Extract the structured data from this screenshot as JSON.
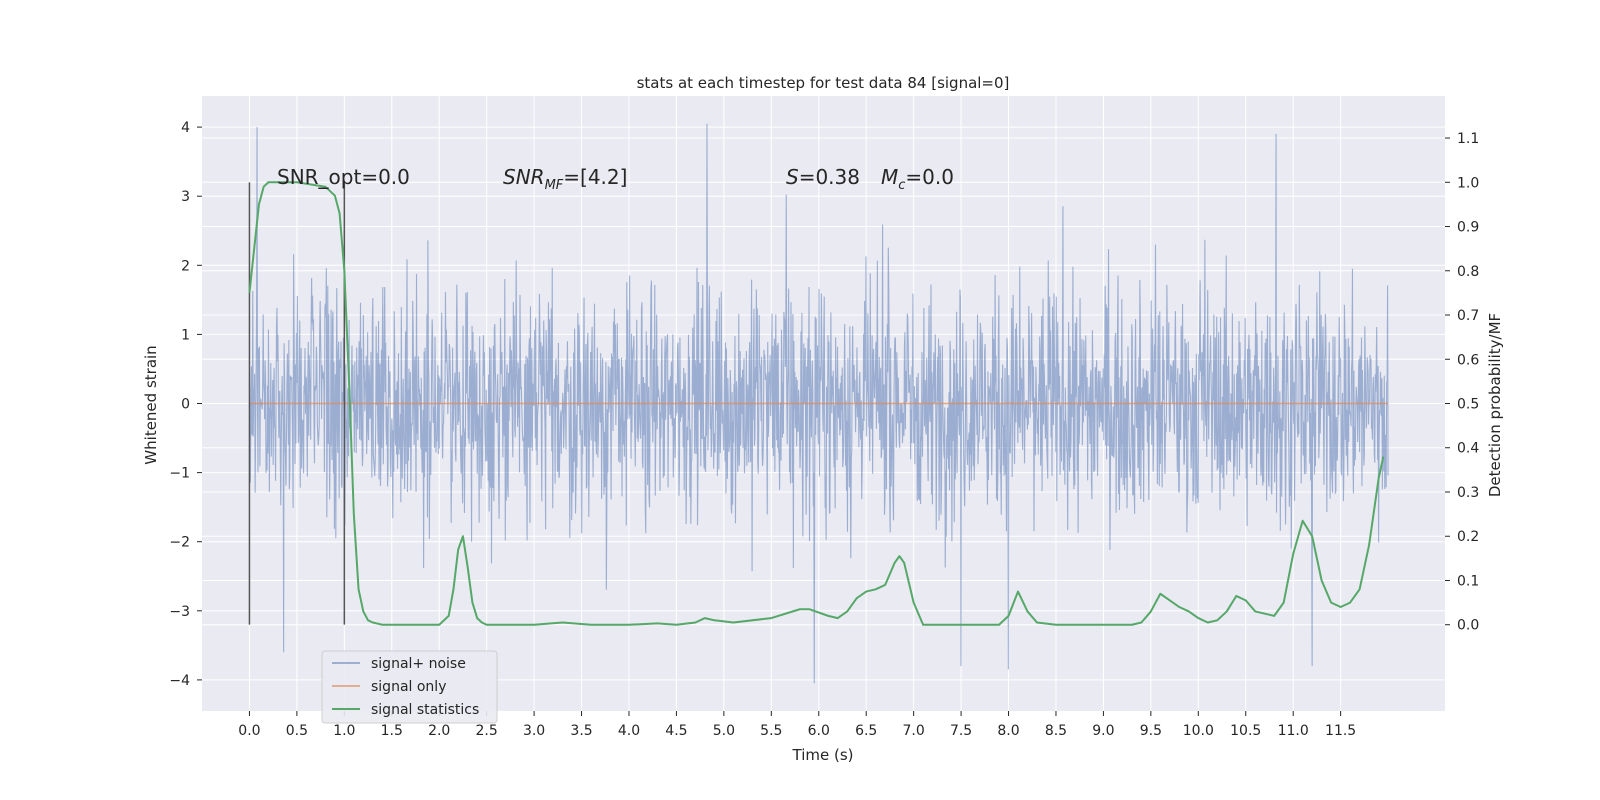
{
  "chart_data": {
    "type": "line",
    "title": "stats at each timestep for test data 84 [signal=0]",
    "xlabel": "Time (s)",
    "ylabel_left": "Whitened strain",
    "ylabel_right": "Detection probability/MF",
    "xlim": [
      -0.5,
      12.6
    ],
    "ylim_left": [
      -4.45,
      4.45
    ],
    "ylim_right": [
      -0.195,
      1.195
    ],
    "x_ticks": [
      "0.0",
      "0.5",
      "1.0",
      "1.5",
      "2.0",
      "2.5",
      "3.0",
      "3.5",
      "4.0",
      "4.5",
      "5.0",
      "5.5",
      "6.0",
      "6.5",
      "7.0",
      "7.5",
      "8.0",
      "8.5",
      "9.0",
      "9.5",
      "10.0",
      "10.5",
      "11.0",
      "11.5"
    ],
    "y_ticks_left": [
      "−4",
      "−3",
      "−2",
      "−1",
      "0",
      "1",
      "2",
      "3",
      "4"
    ],
    "y_ticks_right": [
      "0.0",
      "0.1",
      "0.2",
      "0.3",
      "0.4",
      "0.5",
      "0.6",
      "0.7",
      "0.8",
      "0.9",
      "1.0",
      "1.1"
    ],
    "grid": true,
    "background": "#eaeaf2",
    "annotations": {
      "snr_opt": "SNR_opt=0.0",
      "snr_mf_base": "SNR",
      "snr_mf_sub": "MF",
      "snr_mf_value": "=[4.2]",
      "s_symbol": "S",
      "s_value": "=0.38",
      "mc_symbol": "M",
      "mc_sub": "c",
      "mc_value": "=0.0"
    },
    "window_markers_x": [
      0.0,
      1.0
    ],
    "legend": {
      "placement": "lower left",
      "entries": [
        "signal+ noise",
        "signal only",
        "signal statistics"
      ]
    },
    "series": [
      {
        "name": "signal+ noise",
        "color": "#4c72b0",
        "opacity": 0.5,
        "axis": "left",
        "x_range": [
          0.0,
          12.0
        ],
        "envelope_typical": [
          -2.0,
          2.0
        ],
        "notable_peaks": [
          {
            "x": 0.08,
            "y": 4.0
          },
          {
            "x": 4.82,
            "y": 4.05
          },
          {
            "x": 10.82,
            "y": 3.9
          },
          {
            "x": 5.95,
            "y": -4.05
          },
          {
            "x": 0.36,
            "y": -3.6
          },
          {
            "x": 11.2,
            "y": -3.8
          },
          {
            "x": 8.0,
            "y": -3.85
          },
          {
            "x": 7.5,
            "y": -3.8
          }
        ]
      },
      {
        "name": "signal only",
        "color": "#dd8452",
        "axis": "left",
        "x": [
          0.0,
          12.0
        ],
        "y": [
          0.0,
          0.0
        ]
      },
      {
        "name": "signal statistics",
        "color": "#55a868",
        "axis": "right",
        "x": [
          0.0,
          0.05,
          0.1,
          0.15,
          0.2,
          0.5,
          0.8,
          0.9,
          0.95,
          1.0,
          1.05,
          1.1,
          1.15,
          1.2,
          1.25,
          1.3,
          1.4,
          1.6,
          1.8,
          2.0,
          2.1,
          2.15,
          2.2,
          2.25,
          2.3,
          2.35,
          2.4,
          2.45,
          2.5,
          2.6,
          2.8,
          3.0,
          3.3,
          3.6,
          4.0,
          4.3,
          4.5,
          4.7,
          4.8,
          4.9,
          5.1,
          5.5,
          5.8,
          5.9,
          6.1,
          6.2,
          6.3,
          6.4,
          6.5,
          6.6,
          6.7,
          6.8,
          6.85,
          6.9,
          7.0,
          7.1,
          7.2,
          7.5,
          7.9,
          8.0,
          8.1,
          8.2,
          8.3,
          8.5,
          9.0,
          9.3,
          9.4,
          9.5,
          9.6,
          9.7,
          9.8,
          9.9,
          10.0,
          10.1,
          10.2,
          10.3,
          10.4,
          10.5,
          10.6,
          10.8,
          10.9,
          11.0,
          11.1,
          11.2,
          11.3,
          11.4,
          11.5,
          11.6,
          11.7,
          11.8,
          11.9,
          11.95
        ],
        "y": [
          0.75,
          0.85,
          0.95,
          0.99,
          1.0,
          1.0,
          0.99,
          0.97,
          0.93,
          0.8,
          0.55,
          0.25,
          0.08,
          0.03,
          0.01,
          0.005,
          0.0,
          0.0,
          0.0,
          0.0,
          0.02,
          0.08,
          0.17,
          0.2,
          0.13,
          0.05,
          0.015,
          0.005,
          0.0,
          0.0,
          0.0,
          0.0,
          0.005,
          0.0,
          0.0,
          0.003,
          0.0,
          0.005,
          0.015,
          0.01,
          0.005,
          0.015,
          0.035,
          0.035,
          0.02,
          0.015,
          0.03,
          0.06,
          0.075,
          0.08,
          0.09,
          0.14,
          0.155,
          0.14,
          0.05,
          0.0,
          0.0,
          0.0,
          0.0,
          0.02,
          0.075,
          0.03,
          0.005,
          0.0,
          0.0,
          0.0,
          0.005,
          0.03,
          0.07,
          0.055,
          0.04,
          0.03,
          0.015,
          0.005,
          0.01,
          0.03,
          0.065,
          0.055,
          0.03,
          0.02,
          0.05,
          0.16,
          0.235,
          0.2,
          0.1,
          0.05,
          0.04,
          0.05,
          0.08,
          0.18,
          0.33,
          0.38
        ]
      }
    ]
  }
}
